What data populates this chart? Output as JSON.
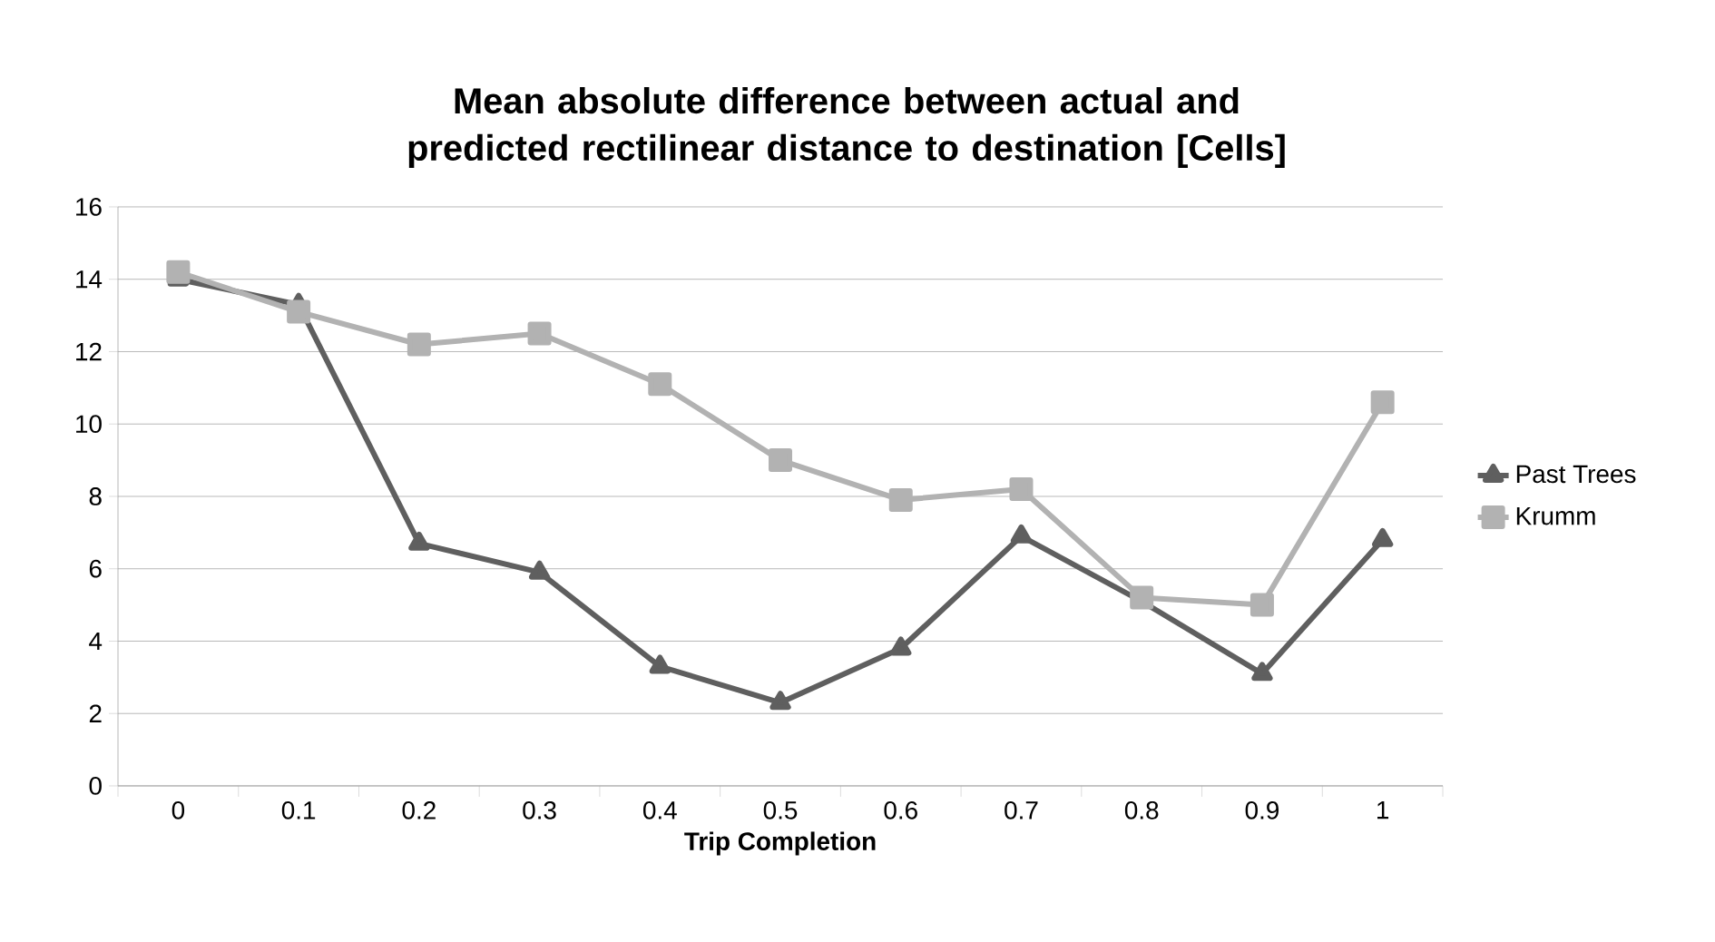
{
  "chart_data": {
    "type": "line",
    "title": "Mean absolute difference between actual and predicted rectilinear distance to destination [Cells]",
    "xlabel": "Trip Completion",
    "categories": [
      "0",
      "0.1",
      "0.2",
      "0.3",
      "0.4",
      "0.5",
      "0.6",
      "0.7",
      "0.8",
      "0.9",
      "1"
    ],
    "series": [
      {
        "name": "Past Trees",
        "color": "#5f5f5f",
        "marker": "triangle",
        "values": [
          14.0,
          13.3,
          6.7,
          5.9,
          3.3,
          2.3,
          3.8,
          6.9,
          5.1,
          3.1,
          6.8
        ]
      },
      {
        "name": "Krumm",
        "color": "#b2b2b2",
        "marker": "square",
        "values": [
          14.2,
          13.1,
          12.2,
          12.5,
          11.1,
          9.0,
          7.9,
          8.2,
          5.2,
          5.0,
          10.6
        ]
      }
    ],
    "ylim": [
      0,
      16
    ],
    "yticks": [
      0,
      2,
      4,
      6,
      8,
      10,
      12,
      14,
      16
    ],
    "grid": "y",
    "legend": "right",
    "line_style": "solid"
  }
}
